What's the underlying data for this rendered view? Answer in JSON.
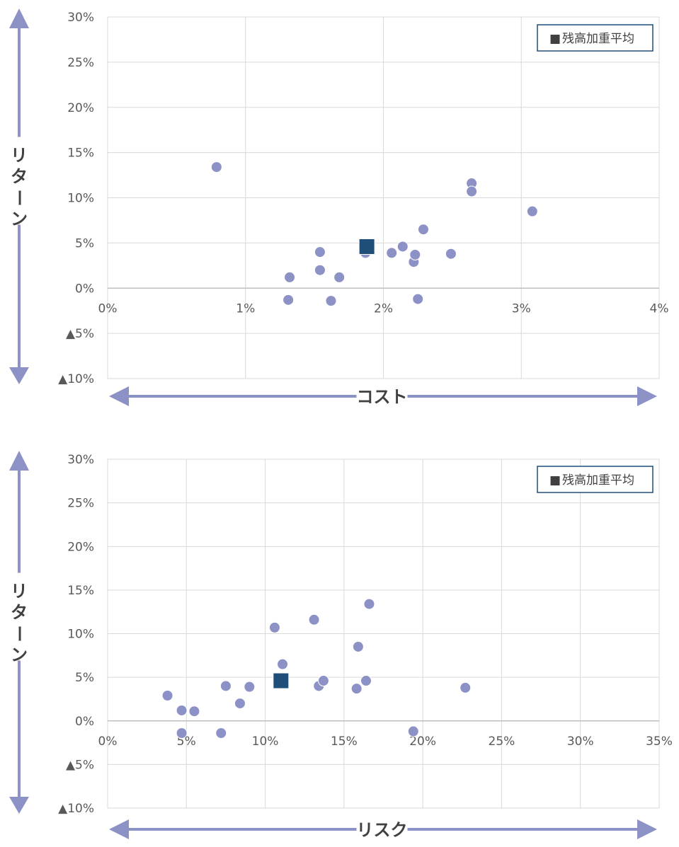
{
  "charts": [
    {
      "chart_data": {
        "type": "scatter",
        "xlabel": "コスト",
        "ylabel": "リターン",
        "xlim": [
          0,
          4
        ],
        "ylim": [
          -10,
          30
        ],
        "x_ticks": [
          0,
          1,
          2,
          3,
          4
        ],
        "x_tick_labels": [
          "0%",
          "1%",
          "2%",
          "3%",
          "4%"
        ],
        "y_ticks": [
          30,
          25,
          20,
          15,
          10,
          5,
          0,
          -5,
          -10
        ],
        "y_tick_labels": [
          "30%",
          "25%",
          "20%",
          "15%",
          "10%",
          "5%",
          "0%",
          "▲5%",
          "▲10%"
        ],
        "grid": true,
        "legend": {
          "position": "top-right",
          "marker": "■",
          "label": "残高加重平均"
        },
        "series": [
          {
            "marker": "circle",
            "color": "#8c91c6",
            "points": [
              [
                0.79,
                13.4
              ],
              [
                1.32,
                1.2
              ],
              [
                1.31,
                -1.3
              ],
              [
                1.54,
                4.0
              ],
              [
                1.54,
                2.0
              ],
              [
                1.62,
                -1.4
              ],
              [
                1.68,
                1.2
              ],
              [
                1.87,
                3.9
              ],
              [
                2.06,
                3.9
              ],
              [
                2.14,
                4.6
              ],
              [
                2.22,
                2.9
              ],
              [
                2.23,
                3.7
              ],
              [
                2.25,
                -1.2
              ],
              [
                2.29,
                6.5
              ],
              [
                2.49,
                3.8
              ],
              [
                2.64,
                11.6
              ],
              [
                2.64,
                10.7
              ],
              [
                3.08,
                8.5
              ]
            ]
          },
          {
            "name": "残高加重平均",
            "marker": "square",
            "color": "#1f4e79",
            "points": [
              [
                1.88,
                4.6
              ]
            ]
          }
        ]
      }
    },
    {
      "chart_data": {
        "type": "scatter",
        "xlabel": "リスク",
        "ylabel": "リターン",
        "xlim": [
          0,
          35
        ],
        "ylim": [
          -10,
          30
        ],
        "x_ticks": [
          0,
          5,
          10,
          15,
          20,
          25,
          30,
          35
        ],
        "x_tick_labels": [
          "0%",
          "5%",
          "10%",
          "15%",
          "20%",
          "25%",
          "30%",
          "35%"
        ],
        "y_ticks": [
          30,
          25,
          20,
          15,
          10,
          5,
          0,
          -5,
          -10
        ],
        "y_tick_labels": [
          "30%",
          "25%",
          "20%",
          "15%",
          "10%",
          "5%",
          "0%",
          "▲5%",
          "▲10%"
        ],
        "grid": true,
        "legend": {
          "position": "top-right",
          "marker": "■",
          "label": "残高加重平均"
        },
        "series": [
          {
            "marker": "circle",
            "color": "#8c91c6",
            "points": [
              [
                3.8,
                2.9
              ],
              [
                4.7,
                1.2
              ],
              [
                4.7,
                -1.4
              ],
              [
                5.5,
                1.1
              ],
              [
                7.2,
                -1.4
              ],
              [
                7.5,
                4.0
              ],
              [
                8.4,
                2.0
              ],
              [
                9.0,
                3.9
              ],
              [
                10.6,
                10.7
              ],
              [
                11.1,
                6.5
              ],
              [
                13.1,
                11.6
              ],
              [
                13.4,
                4.0
              ],
              [
                13.7,
                4.6
              ],
              [
                15.8,
                3.7
              ],
              [
                15.9,
                8.5
              ],
              [
                16.4,
                4.6
              ],
              [
                16.6,
                13.4
              ],
              [
                19.4,
                -1.2
              ],
              [
                22.7,
                3.8
              ]
            ]
          },
          {
            "name": "残高加重平均",
            "marker": "square",
            "color": "#1f4e79",
            "points": [
              [
                11.0,
                4.6
              ]
            ]
          }
        ]
      }
    }
  ]
}
